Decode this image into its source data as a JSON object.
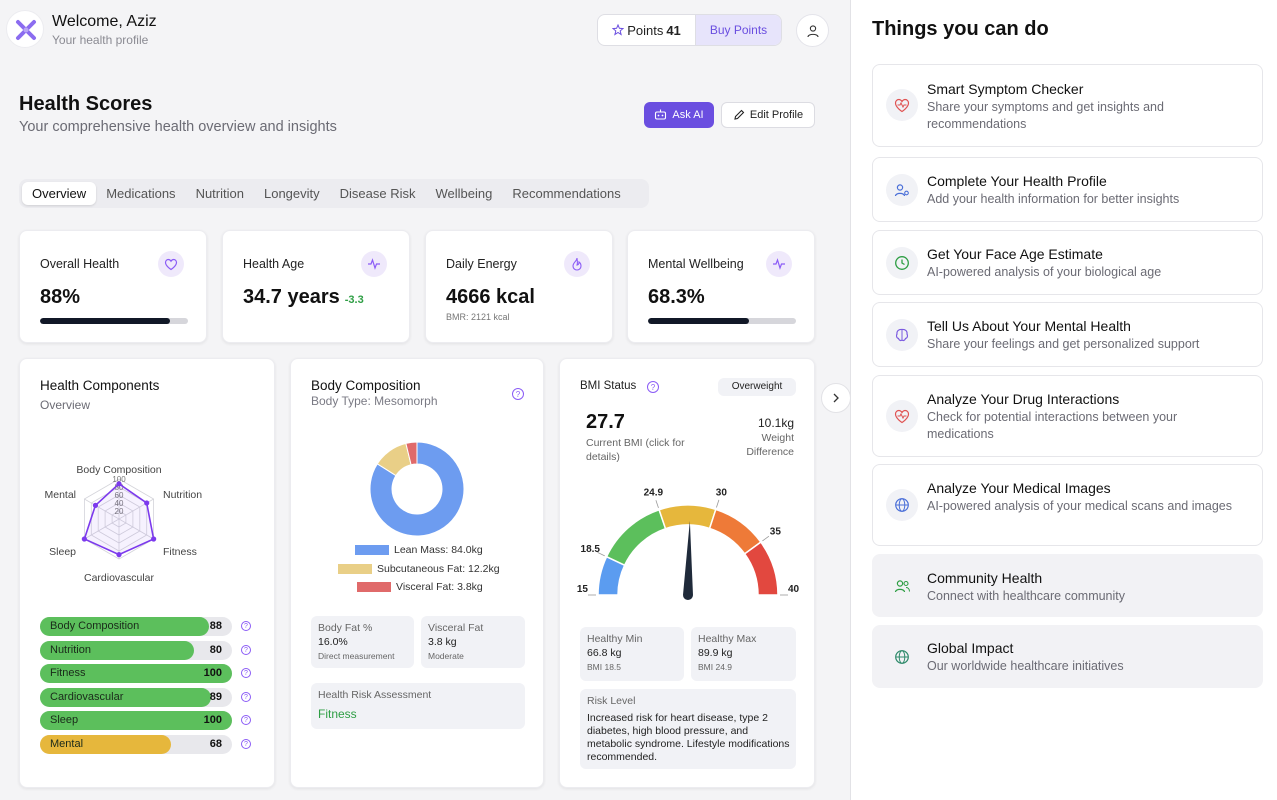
{
  "header": {
    "welcome": "Welcome, Aziz",
    "subtitle": "Your health profile",
    "points_label": "Points",
    "points_value": "41",
    "buy_points": "Buy Points"
  },
  "page": {
    "title": "Health Scores",
    "subtitle": "Your comprehensive health overview and insights",
    "ask_ai": "Ask AI",
    "edit_profile": "Edit Profile"
  },
  "tabs": [
    "Overview",
    "Medications",
    "Nutrition",
    "Longevity",
    "Disease Risk",
    "Wellbeing",
    "Recommendations"
  ],
  "stats": [
    {
      "label": "Overall Health",
      "value": "88%",
      "progress": 88
    },
    {
      "label": "Health Age",
      "value": "34.7 years",
      "delta": "-3.3"
    },
    {
      "label": "Daily Energy",
      "value": "4666 kcal",
      "sub": "BMR: 2121 kcal"
    },
    {
      "label": "Mental Wellbeing",
      "value": "68.3%",
      "progress": 68.3
    }
  ],
  "components": {
    "title": "Health Components",
    "subtitle": "Overview",
    "radar_labels": [
      "Body Composition",
      "Nutrition",
      "Fitness",
      "Cardiovascular",
      "Sleep",
      "Mental"
    ],
    "radar_ticks": [
      "100",
      "80",
      "60",
      "40",
      "20"
    ],
    "bars": [
      {
        "label": "Body Composition",
        "value": 88,
        "color": "#5cbf5c"
      },
      {
        "label": "Nutrition",
        "value": 80,
        "color": "#5cbf5c"
      },
      {
        "label": "Fitness",
        "value": 100,
        "color": "#5cbf5c"
      },
      {
        "label": "Cardiovascular",
        "value": 89,
        "color": "#5cbf5c"
      },
      {
        "label": "Sleep",
        "value": 100,
        "color": "#5cbf5c"
      },
      {
        "label": "Mental",
        "value": 68,
        "color": "#e6b73c"
      }
    ]
  },
  "body": {
    "title": "Body Composition",
    "subtitle": "Body Type: Mesomorph",
    "legend": [
      {
        "label": "Lean Mass: 84.0kg",
        "value": 84.0,
        "color": "#6d9cf0"
      },
      {
        "label": "Subcutaneous Fat: 12.2kg",
        "value": 12.2,
        "color": "#e9cf87"
      },
      {
        "label": "Visceral Fat: 3.8kg",
        "value": 3.8,
        "color": "#e06a6a"
      }
    ],
    "body_fat": {
      "label": "Body Fat %",
      "value": "16.0%",
      "note": "Direct measurement"
    },
    "visceral_fat": {
      "label": "Visceral Fat",
      "value": "3.8 kg",
      "note": "Moderate"
    },
    "risk_label": "Health Risk Assessment",
    "risk_value": "Fitness"
  },
  "bmi": {
    "title": "BMI Status",
    "badge": "Overweight",
    "value": "27.7",
    "value_label": "Current BMI (click for details)",
    "diff_value": "10.1kg",
    "diff_label": "Weight Difference",
    "gauge_labels": [
      "15",
      "18.5",
      "24.9",
      "30",
      "35",
      "40"
    ],
    "healthy_min": {
      "label": "Healthy Min",
      "value": "66.8 kg",
      "note": "BMI 18.5"
    },
    "healthy_max": {
      "label": "Healthy Max",
      "value": "89.9 kg",
      "note": "BMI 24.9"
    },
    "risk_label": "Risk Level",
    "risk_text": "Increased risk for heart disease, type 2 diabetes, high blood pressure, and metabolic syndrome. Lifestyle modifications recommended."
  },
  "side": {
    "title": "Things you can do",
    "actions": [
      {
        "title": "Smart Symptom Checker",
        "desc": "Share your symptoms and get insights and recommendations"
      },
      {
        "title": "Complete Your Health Profile",
        "desc": "Add your health information for better insights"
      },
      {
        "title": "Get Your Face Age Estimate",
        "desc": "AI-powered analysis of your biological age"
      },
      {
        "title": "Tell Us About Your Mental Health",
        "desc": "Share your feelings and get personalized support"
      },
      {
        "title": "Analyze Your Drug Interactions",
        "desc": "Check for potential interactions between your medications"
      },
      {
        "title": "Analyze Your Medical Images",
        "desc": "AI-powered analysis of your medical scans and images"
      },
      {
        "title": "Community Health",
        "desc": "Connect with healthcare community"
      },
      {
        "title": "Global Impact",
        "desc": "Our worldwide healthcare initiatives"
      }
    ]
  }
}
